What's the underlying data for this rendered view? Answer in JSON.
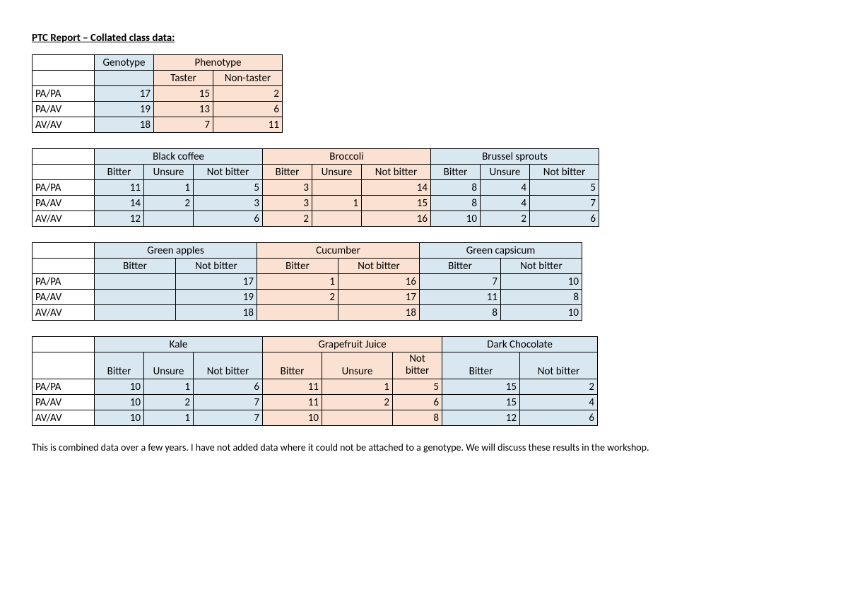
{
  "title": "PTC Report – Collated class data:",
  "colors": {
    "blue": "#d9e7f0",
    "peach": "#fbe1d1",
    "white": "#ffffff"
  },
  "widths": {
    "rowlabel": 88,
    "narrow": 70,
    "med": 84,
    "wide": 98,
    "w100": 100,
    "w110": 110,
    "w115": 115,
    "w120": 120
  },
  "genotypes": [
    "PA/PA",
    "PA/AV",
    "AV/AV"
  ],
  "table1": {
    "h1": "Genotype",
    "h2": "Phenotype",
    "sub": [
      "Taster",
      "Non-taster"
    ],
    "rows": [
      [
        17,
        15,
        2
      ],
      [
        19,
        13,
        6
      ],
      [
        18,
        7,
        11
      ]
    ]
  },
  "table2": {
    "groups": [
      "Black coffee",
      "Broccoli",
      "Brussel sprouts"
    ],
    "sub": [
      "Bitter",
      "Unsure",
      "Not bitter"
    ],
    "rows": [
      [
        11,
        1,
        5,
        3,
        "",
        14,
        8,
        4,
        5
      ],
      [
        14,
        2,
        3,
        3,
        1,
        15,
        8,
        4,
        7
      ],
      [
        12,
        "",
        6,
        2,
        "",
        16,
        10,
        2,
        6
      ]
    ]
  },
  "table3": {
    "groups": [
      "Green apples",
      "Cucumber",
      "Green capsicum"
    ],
    "sub": [
      "Bitter",
      "Not bitter"
    ],
    "rows": [
      [
        "",
        17,
        1,
        16,
        7,
        10
      ],
      [
        "",
        19,
        2,
        17,
        11,
        8
      ],
      [
        "",
        18,
        "",
        18,
        8,
        10
      ]
    ]
  },
  "table4": {
    "groups": [
      "Kale",
      "Grapefruit Juice",
      "Dark Chocolate"
    ],
    "sub3": [
      "Bitter",
      "Unsure",
      "Not bitter"
    ],
    "sub3b": [
      "Bitter",
      "Unsure",
      "Not bitter"
    ],
    "sub2": [
      "Bitter",
      "Not bitter"
    ],
    "rows": [
      [
        10,
        1,
        6,
        11,
        1,
        5,
        15,
        2
      ],
      [
        10,
        2,
        7,
        11,
        2,
        6,
        15,
        4
      ],
      [
        10,
        1,
        7,
        10,
        "",
        8,
        12,
        6
      ]
    ]
  },
  "footnote": "This is combined data over a few years.  I have not added data where it could not be attached to a genotype.  We will discuss these results in the workshop."
}
